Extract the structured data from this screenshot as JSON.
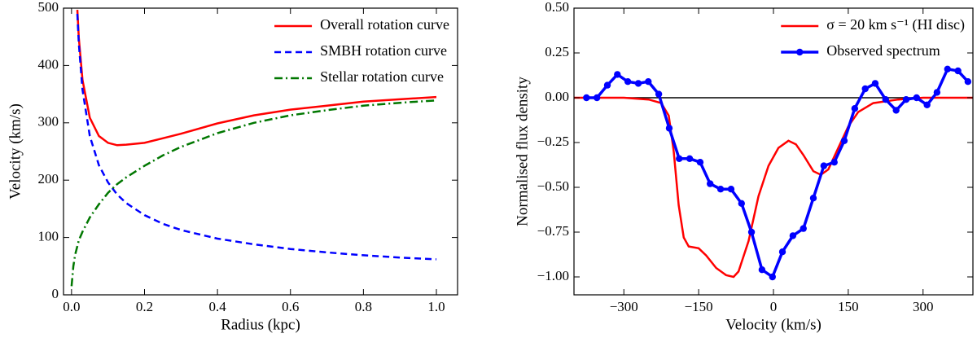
{
  "chart_data": [
    {
      "type": "line",
      "xlabel": "Radius (kpc)",
      "ylabel": "Velocity (km/s)",
      "x": [
        0,
        0.005,
        0.01,
        0.016,
        0.02,
        0.03,
        0.05,
        0.075,
        0.1,
        0.125,
        0.15,
        0.2,
        0.25,
        0.3,
        0.4,
        0.5,
        0.6,
        0.7,
        0.8,
        0.9,
        1.0
      ],
      "series": [
        {
          "name": "Overall rotation curve",
          "color": "#ff0000",
          "linestyle": "solid",
          "values": [
            null,
            null,
            null,
            497,
            448,
            375,
            309,
            277,
            265,
            261,
            262,
            265,
            273,
            281,
            299,
            313,
            323,
            330,
            337,
            341,
            345
          ]
        },
        {
          "name": "SMBH rotation curve",
          "color": "#0000ff",
          "linestyle": "dashed",
          "values": [
            null,
            null,
            null,
            490,
            438,
            358,
            277,
            226,
            196,
            175,
            160,
            139,
            124,
            113,
            98,
            88,
            80,
            74,
            69,
            65,
            62
          ]
        },
        {
          "name": "Stellar rotation curve",
          "color": "#007700",
          "linestyle": "dashdot",
          "values": [
            15,
            50,
            70,
            85,
            95,
            110,
            135,
            158,
            178,
            193,
            205,
            225,
            243,
            258,
            282,
            300,
            313,
            322,
            330,
            335,
            339
          ]
        }
      ],
      "xlim": [
        -0.022,
        1.058
      ],
      "xticks": [
        {
          "value": 0,
          "label": "0.0"
        },
        0.2,
        0.4,
        0.6,
        0.8,
        {
          "value": 1,
          "label": "1.0"
        }
      ],
      "ylim": [
        0,
        500
      ],
      "yticks": [
        0,
        100,
        200,
        300,
        400,
        500
      ],
      "legend": "upper right"
    },
    {
      "type": "line",
      "xlabel": "Velocity (km/s)",
      "ylabel": "Normalised flux density",
      "reference_line": 0,
      "series": [
        {
          "name": "σ = 20 km s⁻¹ (HI disc)",
          "color": "#ff0000",
          "linestyle": "solid",
          "x": [
            -400,
            -300,
            -250,
            -225,
            -210,
            -200,
            -190,
            -180,
            -170,
            -150,
            -135,
            -115,
            -95,
            -80,
            -70,
            -50,
            -30,
            -10,
            10,
            30,
            45,
            60,
            80,
            95,
            110,
            130,
            150,
            170,
            200,
            250,
            300,
            400
          ],
          "values": [
            0,
            0,
            -0.01,
            -0.03,
            -0.1,
            -0.3,
            -0.6,
            -0.78,
            -0.83,
            -0.84,
            -0.88,
            -0.95,
            -0.99,
            -1.0,
            -0.97,
            -0.8,
            -0.55,
            -0.38,
            -0.28,
            -0.24,
            -0.26,
            -0.32,
            -0.41,
            -0.43,
            -0.4,
            -0.28,
            -0.16,
            -0.08,
            -0.03,
            -0.01,
            0,
            0
          ]
        },
        {
          "name": "Observed spectrum",
          "color": "#0000ff",
          "linestyle": "solid",
          "marker": "o",
          "x": [
            -375,
            -354,
            -333,
            -313,
            -292,
            -271,
            -251,
            -230,
            -209,
            -189,
            -168,
            -147,
            -127,
            -106,
            -85,
            -64,
            -44,
            -23,
            -2,
            18,
            39,
            60,
            80,
            101,
            122,
            142,
            163,
            184,
            204,
            225,
            246,
            266,
            287,
            308,
            328,
            349,
            370,
            390
          ],
          "values": [
            0,
            0,
            0.07,
            0.13,
            0.09,
            0.08,
            0.09,
            0.02,
            -0.17,
            -0.34,
            -0.34,
            -0.36,
            -0.48,
            -0.51,
            -0.51,
            -0.59,
            -0.75,
            -0.96,
            -1.0,
            -0.86,
            -0.77,
            -0.73,
            -0.56,
            -0.38,
            -0.36,
            -0.24,
            -0.06,
            0.05,
            0.08,
            -0.01,
            -0.07,
            -0.01,
            0,
            -0.04,
            0.03,
            0.16,
            0.15,
            0.09
          ]
        }
      ],
      "xlim": [
        -400,
        400
      ],
      "xticks": [
        {
          "value": -300,
          "label": "−300"
        },
        {
          "value": -150,
          "label": "−150"
        },
        0,
        150,
        300
      ],
      "ylim": [
        -1.1,
        0.5
      ],
      "yticks": [
        {
          "value": 0.5,
          "label": "0.50"
        },
        {
          "value": 0.25,
          "label": "0.25"
        },
        {
          "value": 0,
          "label": "0.00"
        },
        {
          "value": -0.25,
          "label": "−0.25"
        },
        {
          "value": -0.5,
          "label": "−0.50"
        },
        {
          "value": -0.75,
          "label": "−0.75"
        },
        {
          "value": -1,
          "label": "−1.00"
        }
      ],
      "legend": "upper right"
    }
  ]
}
